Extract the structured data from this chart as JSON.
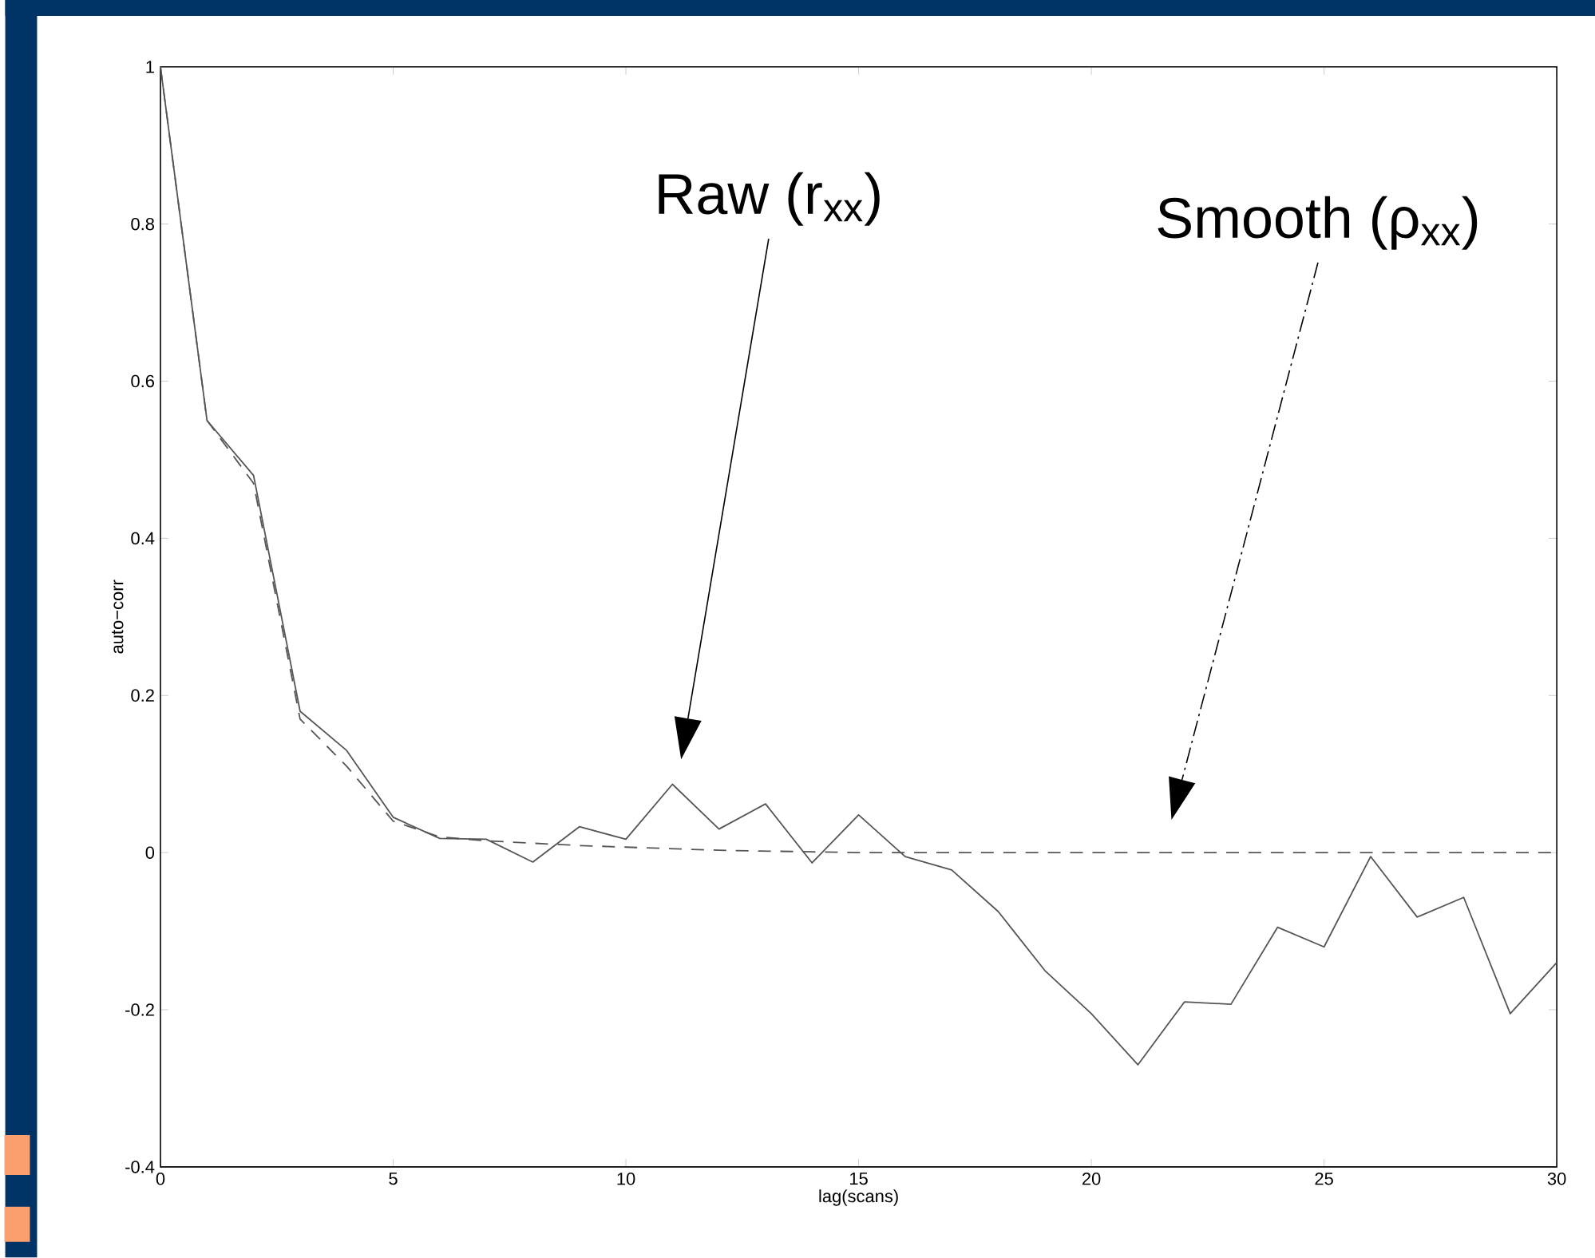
{
  "chart_data": {
    "type": "line",
    "xlabel": "lag(scans)",
    "ylabel": "auto−corr",
    "xlim": [
      0,
      30
    ],
    "ylim": [
      -0.4,
      1
    ],
    "xticks": [
      0,
      5,
      10,
      15,
      20,
      25,
      30
    ],
    "yticks": [
      -0.4,
      -0.2,
      0,
      0.2,
      0.4,
      0.6,
      0.8,
      1
    ],
    "marker": "none",
    "series": [
      {
        "color": "#555555",
        "line_style": "solid",
        "x": [
          0,
          1,
          2,
          3,
          4,
          5,
          6,
          7,
          8,
          9,
          10,
          11,
          12,
          13,
          14,
          15,
          16,
          17,
          18,
          19,
          20,
          21,
          22,
          23,
          24,
          25,
          26,
          27,
          28,
          29,
          30
        ],
        "values": [
          1,
          0.55,
          0.48,
          0.18,
          0.13,
          0.045,
          0.018,
          0.017,
          -0.012,
          0.033,
          0.017,
          0.087,
          0.03,
          0.062,
          -0.013,
          0.048,
          -0.005,
          -0.022,
          -0.075,
          -0.15,
          -0.205,
          -0.27,
          -0.19,
          -0.193,
          -0.095,
          -0.12,
          -0.005,
          -0.082,
          -0.057,
          -0.205,
          -0.14
        ]
      },
      {
        "color": "#555555",
        "line_style": "dashed",
        "x": [
          0,
          1,
          2,
          3,
          4,
          5,
          6,
          7,
          8,
          9,
          10,
          11,
          12,
          13,
          14,
          15,
          20,
          25,
          30
        ],
        "values": [
          1,
          0.55,
          0.47,
          0.17,
          0.11,
          0.04,
          0.02,
          0.015,
          0.012,
          0.009,
          0.007,
          0.005,
          0.003,
          0.002,
          0.001,
          0,
          0,
          0,
          0
        ]
      }
    ],
    "annotations": [
      "Raw (r$_{xx}$)",
      "Smooth (ρ$_{xx}$)"
    ]
  }
}
